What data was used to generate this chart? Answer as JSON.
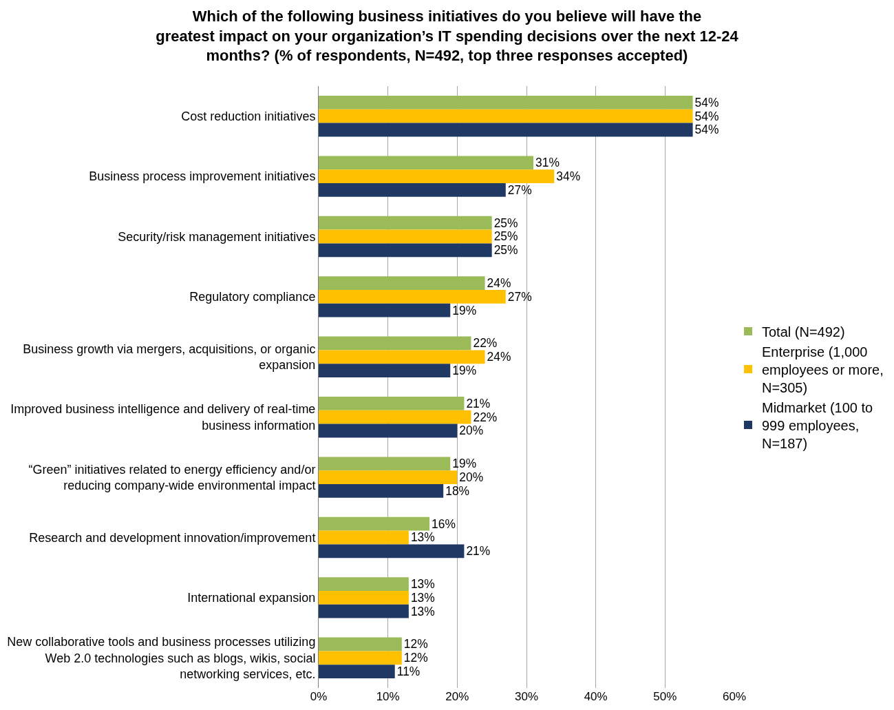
{
  "chart_data": {
    "type": "bar",
    "orientation": "horizontal",
    "title": "Which of the following business initiatives do you believe will have the greatest impact on your organization’s IT spending decisions over the next 12-24 months? (% of respondents, N=492, top three responses accepted)",
    "categories": [
      "Cost reduction initiatives",
      "Business process improvement initiatives",
      "Security/risk management initiatives",
      "Regulatory compliance",
      "Business growth via mergers, acquisitions, or organic expansion",
      "Improved business intelligence and delivery of real-time business information",
      "“Green” initiatives related to energy efficiency and/or reducing company-wide environmental impact",
      "Research and development innovation/improvement",
      "International expansion",
      "New collaborative tools and business processes utilizing Web 2.0 technologies such as blogs, wikis, social networking services, etc."
    ],
    "series": [
      {
        "name": "Total (N=492)",
        "color": "#9bbb59",
        "values": [
          54,
          31,
          25,
          24,
          22,
          21,
          19,
          16,
          13,
          12
        ],
        "value_labels": [
          "54%",
          "31%",
          "25%",
          "24%",
          "22%",
          "21%",
          "19%",
          "16%",
          "13%",
          "12%"
        ]
      },
      {
        "name": "Enterprise (1,000 employees or more, N=305)",
        "color": "#ffc000",
        "values": [
          54,
          34,
          25,
          27,
          24,
          22,
          20,
          13,
          13,
          12
        ],
        "value_labels": [
          "54%",
          "34%",
          "25%",
          "27%",
          "24%",
          "22%",
          "20%",
          "13%",
          "13%",
          "12%"
        ]
      },
      {
        "name": "Midmarket (100 to 999 employees, N=187)",
        "color": "#1f3864",
        "values": [
          54,
          27,
          25,
          19,
          19,
          20,
          18,
          21,
          13,
          11
        ],
        "value_labels": [
          "54%",
          "27%",
          "25%",
          "19%",
          "19%",
          "20%",
          "18%",
          "21%",
          "13%",
          "11%"
        ]
      }
    ],
    "xlim": [
      0,
      60
    ],
    "xticks": [
      {
        "value": 0,
        "label": "0%"
      },
      {
        "value": 10,
        "label": "10%"
      },
      {
        "value": 20,
        "label": "20%"
      },
      {
        "value": 30,
        "label": "30%"
      },
      {
        "value": 40,
        "label": "40%"
      },
      {
        "value": 50,
        "label": "50%"
      },
      {
        "value": 60,
        "label": "60%"
      }
    ],
    "grid": "x",
    "legend": "right"
  }
}
